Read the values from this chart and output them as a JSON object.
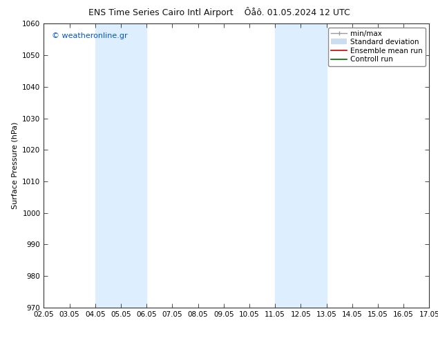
{
  "title_left": "ENS Time Series Cairo Intl Airport",
  "title_right": "Ôåô. 01.05.2024 12 UTC",
  "ylabel": "Surface Pressure (hPa)",
  "ylim": [
    970,
    1060
  ],
  "yticks": [
    970,
    980,
    990,
    1000,
    1010,
    1020,
    1030,
    1040,
    1050,
    1060
  ],
  "x_labels": [
    "02.05",
    "03.05",
    "04.05",
    "05.05",
    "06.05",
    "07.05",
    "08.05",
    "09.05",
    "10.05",
    "11.05",
    "12.05",
    "13.05",
    "14.05",
    "15.05",
    "16.05",
    "17.05"
  ],
  "x_values": [
    0,
    1,
    2,
    3,
    4,
    5,
    6,
    7,
    8,
    9,
    10,
    11,
    12,
    13,
    14,
    15
  ],
  "shaded_regions": [
    {
      "xmin": 2,
      "xmax": 4,
      "color": "#ddeeff"
    },
    {
      "xmin": 9,
      "xmax": 11,
      "color": "#ddeeff"
    }
  ],
  "watermark": "© weatheronline.gr",
  "watermark_color": "#0055cc",
  "bg_color": "#ffffff",
  "plot_bg_color": "#ffffff",
  "border_color": "#333333",
  "title_fontsize": 9,
  "axis_label_fontsize": 8,
  "tick_fontsize": 7.5,
  "legend_fontsize": 7.5,
  "watermark_fontsize": 8
}
